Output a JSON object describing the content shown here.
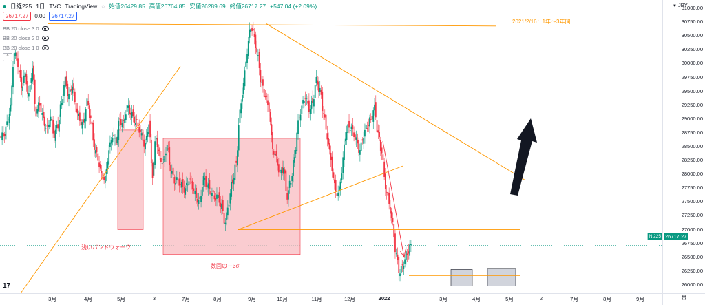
{
  "header": {
    "symbol": "日経225",
    "interval": "1日",
    "exchange": "TVC",
    "source": "TradingView",
    "open": "始値26429.85",
    "high": "高値26764.85",
    "low": "安値26289.69",
    "close": "終値26717.27",
    "change": "+547.04 (+2.09%)"
  },
  "row2": {
    "price": "26717.27",
    "zero": "0.00",
    "price2": "26717.27"
  },
  "indicators": [
    "BB 20 close 3 0",
    "BB 20 close 2 0",
    "BB 20 close 1 0"
  ],
  "currency": "JPY",
  "last_price": "26717.27",
  "symbol_tag": "NI225",
  "price_ticks": [
    "31000.00",
    "30750.00",
    "30500.00",
    "30250.00",
    "30000.00",
    "29750.00",
    "29500.00",
    "29250.00",
    "29000.00",
    "28750.00",
    "28500.00",
    "28250.00",
    "28000.00",
    "27750.00",
    "27500.00",
    "27250.00",
    "27000.00",
    "26750.00",
    "26500.00",
    "26250.00",
    "26000.00"
  ],
  "time_ticks": [
    "3月",
    "4月",
    "5月",
    "3",
    "7月",
    "8月",
    "9月",
    "10月",
    "11月",
    "12月",
    "2022",
    "3月",
    "4月",
    "5月",
    "2",
    "7月",
    "8月",
    "9月",
    "10月"
  ],
  "annotations": {
    "top_right": "2021/2/16：1年～3年間",
    "band_walk": "浅いバンドウォーク",
    "sigma": "数回の－3σ"
  },
  "colors": {
    "up": "#089981",
    "down": "#f23645",
    "trend": "#ff9800",
    "zone": "#f8bbc0"
  },
  "chart_data": {
    "type": "candlestick",
    "ylim": [
      25850,
      31150
    ],
    "series": [
      {
        "name": "日経225",
        "note": "approximate close path",
        "values": [
          28700,
          28900,
          29200,
          30200,
          30000,
          29600,
          29800,
          29400,
          29900,
          29100,
          29300,
          29000,
          28800,
          29000,
          28700,
          28900,
          29300,
          29700,
          29400,
          29600,
          29200,
          29000,
          28900,
          29300,
          29000,
          28500,
          28300,
          28000,
          27900,
          28400,
          28700,
          28600,
          29000,
          28900,
          29200,
          29100,
          29000,
          28900,
          28700,
          28500,
          28900,
          28000,
          28700,
          28300,
          28200,
          28500,
          28100,
          27900,
          27900,
          27800,
          27700,
          27900,
          27800,
          27600,
          27500,
          27900,
          27800,
          27700,
          27600,
          27600,
          27400,
          27100,
          27500,
          27900,
          28200,
          29100,
          29600,
          30200,
          30700,
          30500,
          30100,
          29600,
          29400,
          29200,
          28500,
          28300,
          28000,
          28100,
          27600,
          27900,
          28300,
          28900,
          29200,
          29400,
          29200,
          29300,
          29700,
          29500,
          29100,
          28700,
          28300,
          27800,
          27600,
          28000,
          28700,
          28900,
          28800,
          28600,
          28400,
          28700,
          28900,
          29000,
          29200,
          28700,
          28400,
          27800,
          27500,
          27100,
          26500,
          26200,
          26400,
          26600,
          26717
        ]
      }
    ]
  }
}
